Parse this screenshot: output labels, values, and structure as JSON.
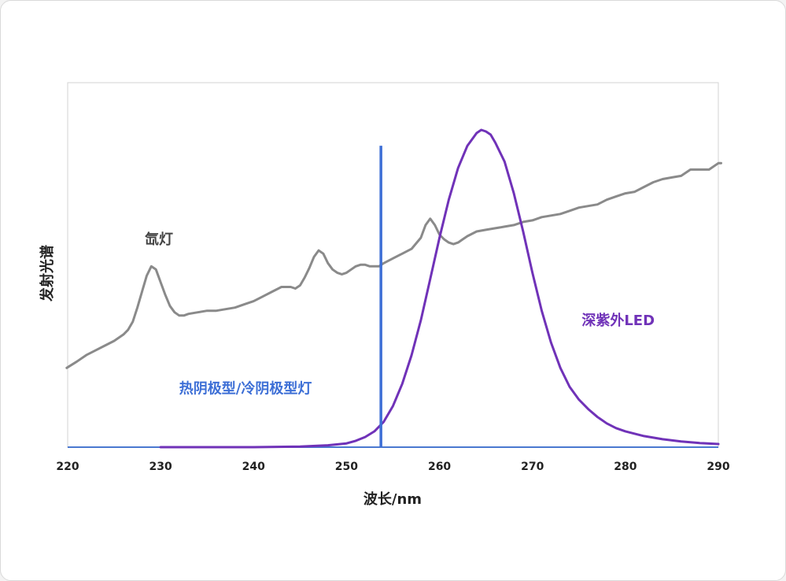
{
  "chart_data": {
    "type": "line",
    "xlabel": "波长/nm",
    "ylabel": "发射光谱",
    "xlim": [
      220,
      290
    ],
    "ylim": [
      0,
      1
    ],
    "xticks": [
      220,
      230,
      240,
      250,
      260,
      270,
      280,
      290
    ],
    "grid": false,
    "legend": "inline labels",
    "colors": {
      "xenon": "#8a8a8a",
      "led": "#7032b8",
      "hcl": "#3d6fd6"
    },
    "series": [
      {
        "name": "氙灯",
        "key": "xenon",
        "x": [
          219.9,
          221,
          222,
          223,
          224,
          225,
          226,
          226.5,
          227,
          227.5,
          228,
          228.5,
          229,
          229.5,
          230,
          230.5,
          231,
          231.5,
          232,
          232.5,
          233,
          234,
          235,
          236,
          237,
          238,
          239,
          240,
          241,
          242,
          243,
          244,
          244.5,
          245,
          245.5,
          246,
          246.5,
          247,
          247.5,
          248,
          248.5,
          249,
          249.5,
          250,
          250.5,
          251,
          251.5,
          252,
          252.5,
          253,
          253.5,
          254,
          255,
          256,
          257,
          258,
          258.5,
          259,
          259.5,
          260,
          260.5,
          261,
          261.5,
          262,
          262.5,
          263,
          264,
          265,
          266,
          267,
          268,
          269,
          270,
          271,
          272,
          273,
          274,
          275,
          276,
          277,
          278,
          279,
          280,
          281,
          282,
          283,
          284,
          285,
          286,
          287,
          288,
          289,
          290,
          290.3
        ],
        "y": [
          0.25,
          0.27,
          0.29,
          0.305,
          0.32,
          0.335,
          0.355,
          0.37,
          0.395,
          0.44,
          0.49,
          0.54,
          0.57,
          0.56,
          0.52,
          0.48,
          0.445,
          0.425,
          0.415,
          0.415,
          0.42,
          0.425,
          0.43,
          0.43,
          0.435,
          0.44,
          0.45,
          0.46,
          0.475,
          0.49,
          0.505,
          0.505,
          0.5,
          0.51,
          0.535,
          0.565,
          0.6,
          0.62,
          0.61,
          0.58,
          0.56,
          0.55,
          0.545,
          0.55,
          0.56,
          0.57,
          0.575,
          0.575,
          0.57,
          0.57,
          0.57,
          0.58,
          0.595,
          0.61,
          0.625,
          0.66,
          0.7,
          0.72,
          0.7,
          0.67,
          0.655,
          0.645,
          0.64,
          0.645,
          0.655,
          0.665,
          0.68,
          0.685,
          0.69,
          0.695,
          0.7,
          0.71,
          0.715,
          0.725,
          0.73,
          0.735,
          0.745,
          0.755,
          0.76,
          0.765,
          0.78,
          0.79,
          0.8,
          0.805,
          0.82,
          0.835,
          0.845,
          0.85,
          0.855,
          0.875,
          0.875,
          0.875,
          0.895,
          0.895
        ]
      },
      {
        "name": "深紫外LED",
        "key": "led",
        "x": [
          230,
          240,
          245,
          248,
          250,
          251,
          252,
          253,
          254,
          255,
          256,
          257,
          258,
          259,
          260,
          261,
          262,
          263,
          264,
          264.5,
          265,
          265.5,
          266,
          267,
          268,
          269,
          270,
          271,
          272,
          273,
          274,
          275,
          276,
          277,
          278,
          279,
          280,
          282,
          284,
          286,
          288,
          290
        ],
        "y": [
          0,
          0,
          0.002,
          0.006,
          0.012,
          0.02,
          0.032,
          0.05,
          0.08,
          0.13,
          0.2,
          0.29,
          0.4,
          0.53,
          0.66,
          0.78,
          0.88,
          0.95,
          0.99,
          1.0,
          0.995,
          0.985,
          0.96,
          0.9,
          0.8,
          0.68,
          0.55,
          0.43,
          0.33,
          0.25,
          0.19,
          0.15,
          0.12,
          0.095,
          0.075,
          0.06,
          0.05,
          0.035,
          0.025,
          0.018,
          0.013,
          0.01
        ]
      },
      {
        "name": "热阴极型/冷阴极型灯",
        "key": "hcl",
        "x": [
          253.7
        ],
        "y": [
          0.95
        ]
      }
    ],
    "annotations": [
      {
        "text": "氙灯",
        "x": 228.3,
        "y": 0.64,
        "color": "#444444"
      },
      {
        "text": "深紫外LED",
        "x": 275.3,
        "y": 0.385,
        "color": "#7032b8"
      },
      {
        "text": "热阴极型/冷阴极型灯",
        "x": 232,
        "y": 0.17,
        "color": "#3d6fd6"
      }
    ]
  }
}
